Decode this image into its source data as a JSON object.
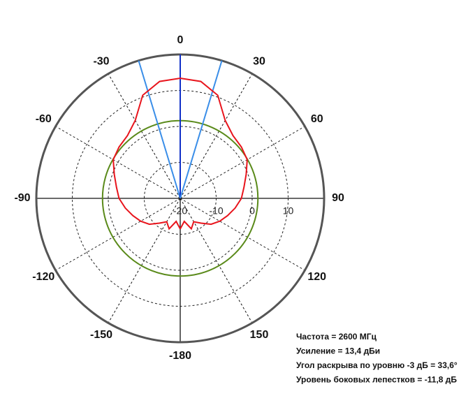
{
  "chart_data": {
    "type": "polar",
    "angle_ticks": [
      0,
      30,
      60,
      90,
      120,
      150,
      -180,
      -150,
      -120,
      -90,
      -60,
      -30
    ],
    "rlim": [
      -20,
      20
    ],
    "rticks": [
      -20,
      -10,
      0,
      10
    ],
    "series": [
      {
        "color": "#e8141c",
        "theta": [
          -180,
          -170,
          -160,
          -150,
          -140,
          -130,
          -120,
          -110,
          -100,
          -90,
          -80,
          -70,
          -60,
          -50,
          -40,
          -30,
          -20,
          -10,
          0,
          10,
          20,
          30,
          40,
          50,
          60,
          70,
          80,
          90,
          100,
          110,
          120,
          130,
          140,
          150,
          160,
          170,
          180
        ],
        "values": [
          -11.5,
          -13.5,
          -11.0,
          -12.5,
          -11.0,
          -8.8,
          -7.3,
          -6.0,
          -4.5,
          -3.0,
          -2.0,
          -0.5,
          1.5,
          2.2,
          2.8,
          5.0,
          10.5,
          13.0,
          13.4,
          13.0,
          10.5,
          5.0,
          2.8,
          2.2,
          1.5,
          -0.5,
          -2.0,
          -3.0,
          -4.5,
          -6.0,
          -7.3,
          -8.8,
          -11.0,
          -12.5,
          -11.0,
          -13.5,
          -11.5
        ]
      }
    ],
    "reference_circle": {
      "value": 1.6,
      "color": "#5a8a1a"
    },
    "beam_lines": [
      {
        "angle": -16.8,
        "color": "#3a8ee8"
      },
      {
        "angle": 0,
        "color": "#1030c8"
      },
      {
        "angle": 16.8,
        "color": "#3a8ee8"
      }
    ],
    "annotations": [
      "Частота = 2600 МГц",
      "Усиление = 13,4 дБи",
      "Угол раскрыва по уровню -3 дБ = 33,6°",
      "Уровень боковых лепестков = -11,8 дБ"
    ]
  }
}
